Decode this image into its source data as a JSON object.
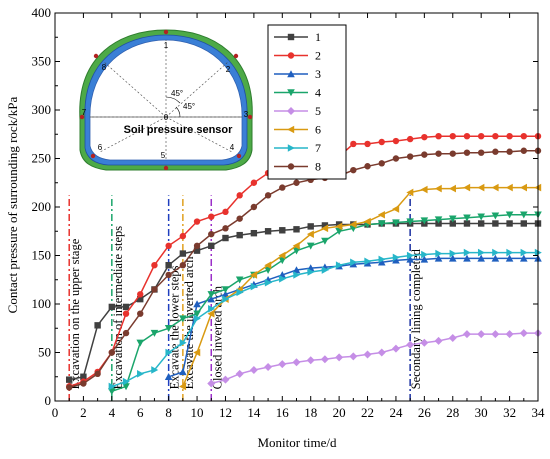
{
  "chart_data": {
    "type": "line",
    "xlabel": "Monitor time/d",
    "ylabel": "Contact pressure of surrounding rock/kPa",
    "xlim": [
      0,
      34
    ],
    "ylim": [
      0,
      400
    ],
    "xticks": [
      0,
      2,
      4,
      6,
      8,
      10,
      12,
      14,
      16,
      18,
      20,
      22,
      24,
      26,
      28,
      30,
      32,
      34
    ],
    "yticks": [
      0,
      50,
      100,
      150,
      200,
      250,
      300,
      350,
      400
    ],
    "grid": false,
    "legend_position": "top-right",
    "series": [
      {
        "name": "1",
        "color": "#404040",
        "marker": "square",
        "points": [
          [
            1,
            22
          ],
          [
            2,
            25
          ],
          [
            3,
            78
          ],
          [
            4,
            97
          ],
          [
            5,
            97
          ],
          [
            6,
            105
          ],
          [
            7,
            115
          ],
          [
            8,
            140
          ],
          [
            9,
            152
          ],
          [
            10,
            155
          ],
          [
            11,
            160
          ],
          [
            12,
            168
          ],
          [
            13,
            171
          ],
          [
            14,
            173
          ],
          [
            15,
            175
          ],
          [
            16,
            176
          ],
          [
            17,
            177
          ],
          [
            18,
            180
          ],
          [
            19,
            181
          ],
          [
            20,
            182
          ],
          [
            21,
            182
          ],
          [
            22,
            182
          ],
          [
            23,
            183
          ],
          [
            24,
            183
          ],
          [
            25,
            183
          ],
          [
            26,
            183
          ],
          [
            27,
            183
          ],
          [
            28,
            183
          ],
          [
            29,
            183
          ],
          [
            30,
            183
          ],
          [
            31,
            183
          ],
          [
            32,
            183
          ],
          [
            33,
            183
          ],
          [
            34,
            183
          ]
        ]
      },
      {
        "name": "2",
        "color": "#e8322d",
        "marker": "circle",
        "points": [
          [
            1,
            15
          ],
          [
            2,
            20
          ],
          [
            3,
            30
          ],
          [
            4,
            50
          ],
          [
            5,
            90
          ],
          [
            6,
            110
          ],
          [
            7,
            140
          ],
          [
            8,
            160
          ],
          [
            9,
            170
          ],
          [
            10,
            185
          ],
          [
            11,
            190
          ],
          [
            12,
            195
          ],
          [
            13,
            212
          ],
          [
            14,
            225
          ],
          [
            15,
            235
          ],
          [
            16,
            240
          ],
          [
            17,
            243
          ],
          [
            18,
            245
          ],
          [
            19,
            248
          ],
          [
            20,
            252
          ],
          [
            21,
            265
          ],
          [
            22,
            265
          ],
          [
            23,
            267
          ],
          [
            24,
            268
          ],
          [
            25,
            270
          ],
          [
            26,
            272
          ],
          [
            27,
            273
          ],
          [
            28,
            273
          ],
          [
            29,
            273
          ],
          [
            30,
            273
          ],
          [
            31,
            273
          ],
          [
            32,
            273
          ],
          [
            33,
            273
          ],
          [
            34,
            273
          ]
        ]
      },
      {
        "name": "3",
        "color": "#1f5fbf",
        "marker": "triangle-up",
        "points": [
          [
            8,
            25
          ],
          [
            9,
            30
          ],
          [
            10,
            100
          ],
          [
            11,
            105
          ],
          [
            12,
            110
          ],
          [
            13,
            115
          ],
          [
            14,
            120
          ],
          [
            15,
            125
          ],
          [
            16,
            130
          ],
          [
            17,
            135
          ],
          [
            18,
            137
          ],
          [
            19,
            138
          ],
          [
            20,
            139
          ],
          [
            21,
            141
          ],
          [
            22,
            142
          ],
          [
            23,
            143
          ],
          [
            24,
            145
          ],
          [
            25,
            146
          ],
          [
            26,
            146
          ],
          [
            27,
            147
          ],
          [
            28,
            147
          ],
          [
            29,
            147
          ],
          [
            30,
            147
          ],
          [
            31,
            147
          ],
          [
            32,
            147
          ],
          [
            33,
            147
          ],
          [
            34,
            147
          ]
        ]
      },
      {
        "name": "4",
        "color": "#1aa56b",
        "marker": "triangle-down",
        "points": [
          [
            4,
            10
          ],
          [
            5,
            15
          ],
          [
            6,
            60
          ],
          [
            7,
            70
          ],
          [
            8,
            75
          ],
          [
            9,
            85
          ],
          [
            10,
            90
          ],
          [
            11,
            110
          ],
          [
            12,
            115
          ],
          [
            13,
            125
          ],
          [
            14,
            130
          ],
          [
            15,
            135
          ],
          [
            16,
            145
          ],
          [
            17,
            155
          ],
          [
            18,
            160
          ],
          [
            19,
            165
          ],
          [
            20,
            175
          ],
          [
            21,
            178
          ],
          [
            22,
            182
          ],
          [
            23,
            183
          ],
          [
            24,
            184
          ],
          [
            25,
            185
          ],
          [
            26,
            186
          ],
          [
            27,
            187
          ],
          [
            28,
            188
          ],
          [
            29,
            189
          ],
          [
            30,
            190
          ],
          [
            31,
            191
          ],
          [
            32,
            192
          ],
          [
            33,
            192
          ],
          [
            34,
            192
          ]
        ]
      },
      {
        "name": "5",
        "color": "#c58ee6",
        "marker": "diamond",
        "points": [
          [
            11,
            18
          ],
          [
            12,
            22
          ],
          [
            13,
            28
          ],
          [
            14,
            32
          ],
          [
            15,
            35
          ],
          [
            16,
            38
          ],
          [
            17,
            40
          ],
          [
            18,
            42
          ],
          [
            19,
            43
          ],
          [
            20,
            45
          ],
          [
            21,
            46
          ],
          [
            22,
            48
          ],
          [
            23,
            50
          ],
          [
            24,
            54
          ],
          [
            25,
            58
          ],
          [
            26,
            60
          ],
          [
            27,
            62
          ],
          [
            28,
            65
          ],
          [
            29,
            69
          ],
          [
            30,
            69
          ],
          [
            31,
            69
          ],
          [
            32,
            69
          ],
          [
            33,
            70
          ],
          [
            34,
            70
          ]
        ]
      },
      {
        "name": "6",
        "color": "#d99a12",
        "marker": "triangle-left",
        "points": [
          [
            9,
            15
          ],
          [
            10,
            50
          ],
          [
            11,
            90
          ],
          [
            12,
            105
          ],
          [
            13,
            115
          ],
          [
            14,
            130
          ],
          [
            15,
            140
          ],
          [
            16,
            150
          ],
          [
            17,
            160
          ],
          [
            18,
            172
          ],
          [
            19,
            178
          ],
          [
            20,
            180
          ],
          [
            21,
            182
          ],
          [
            22,
            185
          ],
          [
            23,
            192
          ],
          [
            24,
            198
          ],
          [
            25,
            215
          ],
          [
            26,
            218
          ],
          [
            27,
            219
          ],
          [
            28,
            219
          ],
          [
            29,
            220
          ],
          [
            30,
            220
          ],
          [
            31,
            220
          ],
          [
            32,
            220
          ],
          [
            33,
            220
          ],
          [
            34,
            220
          ]
        ]
      },
      {
        "name": "7",
        "color": "#27b6c9",
        "marker": "triangle-right",
        "points": [
          [
            4,
            15
          ],
          [
            5,
            20
          ],
          [
            6,
            28
          ],
          [
            7,
            32
          ],
          [
            8,
            50
          ],
          [
            9,
            60
          ],
          [
            10,
            85
          ],
          [
            11,
            95
          ],
          [
            12,
            105
          ],
          [
            13,
            112
          ],
          [
            14,
            118
          ],
          [
            15,
            122
          ],
          [
            16,
            126
          ],
          [
            17,
            130
          ],
          [
            18,
            133
          ],
          [
            19,
            135
          ],
          [
            20,
            140
          ],
          [
            21,
            143
          ],
          [
            22,
            144
          ],
          [
            23,
            146
          ],
          [
            24,
            148
          ],
          [
            25,
            150
          ],
          [
            26,
            151
          ],
          [
            27,
            152
          ],
          [
            28,
            152
          ],
          [
            29,
            153
          ],
          [
            30,
            153
          ],
          [
            31,
            153
          ],
          [
            32,
            153
          ],
          [
            33,
            153
          ],
          [
            34,
            153
          ]
        ]
      },
      {
        "name": "8",
        "color": "#7a3b2e",
        "marker": "circle",
        "points": [
          [
            1,
            14
          ],
          [
            2,
            18
          ],
          [
            3,
            28
          ],
          [
            4,
            50
          ],
          [
            5,
            70
          ],
          [
            6,
            90
          ],
          [
            7,
            115
          ],
          [
            8,
            130
          ],
          [
            9,
            140
          ],
          [
            10,
            160
          ],
          [
            11,
            172
          ],
          [
            12,
            178
          ],
          [
            13,
            188
          ],
          [
            14,
            200
          ],
          [
            15,
            212
          ],
          [
            16,
            220
          ],
          [
            17,
            225
          ],
          [
            18,
            228
          ],
          [
            19,
            230
          ],
          [
            20,
            232
          ],
          [
            21,
            238
          ],
          [
            22,
            242
          ],
          [
            23,
            245
          ],
          [
            24,
            250
          ],
          [
            25,
            252
          ],
          [
            26,
            254
          ],
          [
            27,
            255
          ],
          [
            28,
            255
          ],
          [
            29,
            256
          ],
          [
            30,
            256
          ],
          [
            31,
            257
          ],
          [
            32,
            257
          ],
          [
            33,
            258
          ],
          [
            34,
            258
          ]
        ]
      }
    ],
    "phase_markers": [
      {
        "x": 1,
        "label": "Excavation on the upper stage",
        "color": "#e8322d"
      },
      {
        "x": 4,
        "label": "Excavation of intermediate steps",
        "color": "#1aa56b"
      },
      {
        "x": 8,
        "label": "Excavate the lower steps",
        "color": "#1f3fbf"
      },
      {
        "x": 9,
        "label": "Excavate the inverted arch",
        "color": "#e0a020"
      },
      {
        "x": 11,
        "label": "Closed inverted arch",
        "color": "#9b2fc9"
      },
      {
        "x": 25,
        "label": "Secondary lining completed",
        "color": "#1a2fa0"
      }
    ],
    "inset": {
      "title": "Soil pressure sensor",
      "sensor_labels": [
        "1",
        "2",
        "3",
        "4",
        "5",
        "6",
        "7",
        "8"
      ],
      "center_label": "0",
      "angle_labels": [
        "45°",
        "45°"
      ]
    }
  }
}
